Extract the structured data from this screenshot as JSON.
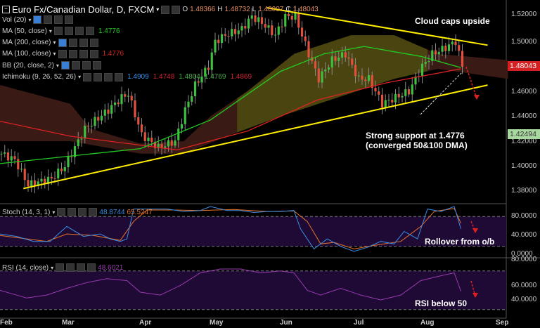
{
  "header": {
    "title": "Euro Fx/Canadian Dollar, D, FXCM",
    "o_label": "O",
    "o": "1.48366",
    "h_label": "H",
    "h": "1.48732",
    "l_label": "L",
    "l": "1.48007",
    "c_label": "C",
    "c": "1.48043"
  },
  "legends": [
    {
      "label": "Vol (20)",
      "values": []
    },
    {
      "label": "MA (50, close)",
      "values": [
        {
          "v": "1.4776",
          "color": "#22cc22"
        }
      ]
    },
    {
      "label": "MA (200, close)",
      "values": []
    },
    {
      "label": "MA (100, close)",
      "values": [
        {
          "v": "1.4776",
          "color": "#dd2222"
        }
      ]
    },
    {
      "label": "BB (20, close, 2)",
      "values": []
    },
    {
      "label": "Ichimoku (9, 26, 52, 26)",
      "values": [
        {
          "v": "1.4909",
          "color": "#3a8ee6"
        },
        {
          "v": "1.4748",
          "color": "#c23"
        },
        {
          "v": "1.4804",
          "color": "#4a4"
        },
        {
          "v": "1.4769",
          "color": "#4a4"
        },
        {
          "v": "1.4869",
          "color": "#c23"
        }
      ]
    }
  ],
  "stoch": {
    "label": "Stoch (14, 3, 1)",
    "k": "48.8744",
    "d": "65.5247",
    "axis": [
      "80.0000",
      "40.0000",
      "0.0000"
    ]
  },
  "rsi": {
    "label": "RSI (14, close)",
    "value": "48.6021",
    "axis": [
      "80.0000",
      "60.0000",
      "40.0000"
    ]
  },
  "price_axis": [
    "1.52000",
    "1.50000",
    "1.46000",
    "1.44000",
    "1.42000",
    "1.40000",
    "1.38000"
  ],
  "last_price": "1.48043",
  "other_price": "1.42494",
  "months": [
    "Feb",
    "Mar",
    "Apr",
    "May",
    "Jun",
    "Jul",
    "Aug",
    "Sep"
  ],
  "annotations": {
    "cloud": "Cloud caps upside",
    "support1": "Strong support at 1.4776",
    "support2": "(converged 50&100 DMA)",
    "stoch": "Rollover from o/b",
    "rsi": "RSI below 50"
  },
  "colors": {
    "up": "#3fbf3f",
    "down": "#e0503a",
    "ma50": "#22cc22",
    "ma100": "#dd2222",
    "trend": "#ffee00"
  },
  "chart_data": {
    "type": "line",
    "title": "Euro Fx/Canadian Dollar, D, FXCM",
    "ylim": [
      1.37,
      1.53
    ],
    "price_keypoints": [
      [
        0,
        1.41
      ],
      [
        4,
        1.405
      ],
      [
        8,
        1.385
      ],
      [
        15,
        1.39
      ],
      [
        19,
        1.4
      ],
      [
        22,
        1.415
      ],
      [
        25,
        1.43
      ],
      [
        32,
        1.445
      ],
      [
        36,
        1.455
      ],
      [
        38,
        1.458
      ],
      [
        42,
        1.425
      ],
      [
        47,
        1.415
      ],
      [
        52,
        1.42
      ],
      [
        55,
        1.445
      ],
      [
        58,
        1.465
      ],
      [
        62,
        1.48
      ],
      [
        64,
        1.5
      ],
      [
        67,
        1.505
      ],
      [
        72,
        1.51
      ],
      [
        75,
        1.52
      ],
      [
        78,
        1.515
      ],
      [
        82,
        1.505
      ],
      [
        85,
        1.52
      ],
      [
        88,
        1.52
      ],
      [
        92,
        1.49
      ],
      [
        95,
        1.47
      ],
      [
        99,
        1.485
      ],
      [
        103,
        1.49
      ],
      [
        107,
        1.47
      ],
      [
        110,
        1.47
      ],
      [
        114,
        1.45
      ],
      [
        118,
        1.455
      ],
      [
        122,
        1.46
      ],
      [
        126,
        1.48
      ],
      [
        129,
        1.49
      ],
      [
        133,
        1.495
      ],
      [
        136,
        1.5
      ],
      [
        138,
        1.48
      ]
    ],
    "ma50": [
      [
        0,
        1.402
      ],
      [
        42,
        1.414
      ],
      [
        63,
        1.437
      ],
      [
        84,
        1.476
      ],
      [
        97,
        1.49
      ],
      [
        109,
        1.496
      ],
      [
        126,
        1.488
      ],
      [
        138,
        1.479
      ]
    ],
    "ma100": [
      [
        0,
        1.436
      ],
      [
        21,
        1.424
      ],
      [
        53,
        1.413
      ],
      [
        74,
        1.428
      ],
      [
        95,
        1.453
      ],
      [
        116,
        1.467
      ],
      [
        138,
        1.478
      ]
    ],
    "cloud_top": [
      [
        0,
        1.465
      ],
      [
        21,
        1.45
      ],
      [
        27,
        1.43
      ],
      [
        42,
        1.418
      ],
      [
        55,
        1.42
      ],
      [
        63,
        1.44
      ],
      [
        74,
        1.46
      ],
      [
        88,
        1.49
      ],
      [
        105,
        1.505
      ],
      [
        118,
        1.505
      ],
      [
        131,
        1.49
      ],
      [
        152,
        1.485
      ]
    ],
    "cloud_bottom": [
      [
        0,
        1.42
      ],
      [
        21,
        1.42
      ],
      [
        42,
        1.41
      ],
      [
        55,
        1.41
      ],
      [
        69,
        1.425
      ],
      [
        84,
        1.44
      ],
      [
        101,
        1.455
      ],
      [
        118,
        1.47
      ],
      [
        131,
        1.478
      ],
      [
        152,
        1.47
      ]
    ],
    "trendlines": [
      [
        [
          7,
          1.382
        ],
        [
          146,
          1.465
        ]
      ],
      [
        [
          80,
          1.527
        ],
        [
          146,
          1.497
        ]
      ]
    ],
    "stoch_k": [
      [
        0,
        45
      ],
      [
        5,
        40
      ],
      [
        10,
        30
      ],
      [
        15,
        30
      ],
      [
        20,
        60
      ],
      [
        25,
        40
      ],
      [
        30,
        45
      ],
      [
        33,
        35
      ],
      [
        36,
        30
      ],
      [
        38,
        35
      ],
      [
        40,
        95
      ],
      [
        45,
        95
      ],
      [
        50,
        95
      ],
      [
        55,
        90
      ],
      [
        60,
        92
      ],
      [
        63,
        100
      ],
      [
        68,
        92
      ],
      [
        72,
        92
      ],
      [
        76,
        88
      ],
      [
        80,
        90
      ],
      [
        84,
        90
      ],
      [
        88,
        92
      ],
      [
        90,
        55
      ],
      [
        94,
        15
      ],
      [
        98,
        35
      ],
      [
        102,
        20
      ],
      [
        106,
        10
      ],
      [
        110,
        18
      ],
      [
        114,
        30
      ],
      [
        118,
        25
      ],
      [
        121,
        50
      ],
      [
        125,
        35
      ],
      [
        128,
        95
      ],
      [
        132,
        90
      ],
      [
        136,
        100
      ],
      [
        138,
        55
      ]
    ],
    "stoch_d": [
      [
        0,
        42
      ],
      [
        8,
        35
      ],
      [
        14,
        30
      ],
      [
        20,
        45
      ],
      [
        28,
        42
      ],
      [
        36,
        32
      ],
      [
        40,
        70
      ],
      [
        44,
        93
      ],
      [
        52,
        93
      ],
      [
        60,
        92
      ],
      [
        70,
        94
      ],
      [
        80,
        90
      ],
      [
        88,
        91
      ],
      [
        92,
        70
      ],
      [
        96,
        25
      ],
      [
        100,
        28
      ],
      [
        106,
        15
      ],
      [
        112,
        22
      ],
      [
        120,
        30
      ],
      [
        126,
        60
      ],
      [
        130,
        90
      ],
      [
        136,
        96
      ],
      [
        138,
        66
      ]
    ],
    "rsi": [
      [
        0,
        50
      ],
      [
        8,
        42
      ],
      [
        14,
        45
      ],
      [
        20,
        52
      ],
      [
        26,
        58
      ],
      [
        32,
        62
      ],
      [
        38,
        60
      ],
      [
        42,
        48
      ],
      [
        48,
        45
      ],
      [
        54,
        55
      ],
      [
        60,
        68
      ],
      [
        66,
        72
      ],
      [
        72,
        72
      ],
      [
        78,
        68
      ],
      [
        84,
        70
      ],
      [
        88,
        68
      ],
      [
        92,
        50
      ],
      [
        96,
        45
      ],
      [
        102,
        52
      ],
      [
        108,
        45
      ],
      [
        114,
        40
      ],
      [
        120,
        45
      ],
      [
        126,
        60
      ],
      [
        132,
        65
      ],
      [
        136,
        68
      ],
      [
        138,
        49
      ]
    ]
  }
}
